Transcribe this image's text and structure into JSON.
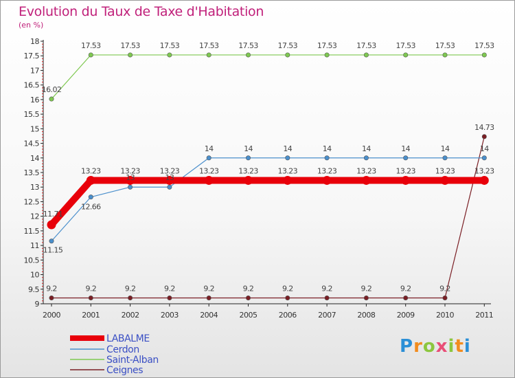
{
  "title": "Evolution du Taux de Taxe d'Habitation",
  "unit": "(en %)",
  "logo": {
    "text": "Proxiti",
    "letters": [
      "P",
      "r",
      "o",
      "x",
      "i",
      "t",
      "i"
    ]
  },
  "chart_data": {
    "type": "line",
    "title": "Evolution du Taux de Taxe d'Habitation",
    "ylabel": "(en %)",
    "ylim": [
      9,
      18
    ],
    "yticks": [
      9,
      9.5,
      10,
      10.5,
      11,
      11.5,
      12,
      12.5,
      13,
      13.5,
      14,
      14.5,
      15,
      15.5,
      16,
      16.5,
      17,
      17.5,
      18
    ],
    "ytick_labels": [
      "9",
      "9.5",
      "10",
      "10.5",
      "11",
      "11.5",
      "12",
      "12.5",
      "13",
      "13.5",
      "14",
      "14.5",
      "15",
      "15.5",
      "16",
      "16.5",
      "17",
      "17.5",
      "18"
    ],
    "categories": [
      "2000",
      "2001",
      "2002",
      "2003",
      "2004",
      "2005",
      "2006",
      "2007",
      "2008",
      "2009",
      "2010",
      "2011"
    ],
    "grid": false,
    "legend": "bottom-left",
    "series": [
      {
        "name": "LABALME",
        "color": "#e8000a",
        "values": [
          11.71,
          13.23,
          13.23,
          13.23,
          13.23,
          13.23,
          13.23,
          13.23,
          13.23,
          13.23,
          13.23,
          13.23
        ],
        "labels": [
          "11.71",
          "13.23",
          "13.23",
          "13.23",
          "13.23",
          "13.23",
          "13.23",
          "13.23",
          "13.23",
          "13.23",
          "13.23",
          "13.23"
        ]
      },
      {
        "name": "Cerdon",
        "color": "#4a8fcc",
        "values": [
          11.15,
          12.66,
          13,
          13,
          14,
          14,
          14,
          14,
          14,
          14,
          14,
          14
        ],
        "labels": [
          "11.15",
          "12.66",
          "13",
          "13",
          "14",
          "14",
          "14",
          "14",
          "14",
          "14",
          "14",
          "14"
        ]
      },
      {
        "name": "Saint-Alban",
        "color": "#7ec850",
        "values": [
          16.02,
          17.53,
          17.53,
          17.53,
          17.53,
          17.53,
          17.53,
          17.53,
          17.53,
          17.53,
          17.53,
          17.53
        ],
        "labels": [
          "16.02",
          "17.53",
          "17.53",
          "17.53",
          "17.53",
          "17.53",
          "17.53",
          "17.53",
          "17.53",
          "17.53",
          "17.53",
          "17.53"
        ]
      },
      {
        "name": "Ceignes",
        "color": "#7a1e24",
        "values": [
          9.2,
          9.2,
          9.2,
          9.2,
          9.2,
          9.2,
          9.2,
          9.2,
          9.2,
          9.2,
          9.2,
          14.73
        ],
        "labels": [
          "9.2",
          "9.2",
          "9.2",
          "9.2",
          "9.2",
          "9.2",
          "9.2",
          "9.2",
          "9.2",
          "9.2",
          "9.2",
          "14.73"
        ]
      }
    ]
  }
}
